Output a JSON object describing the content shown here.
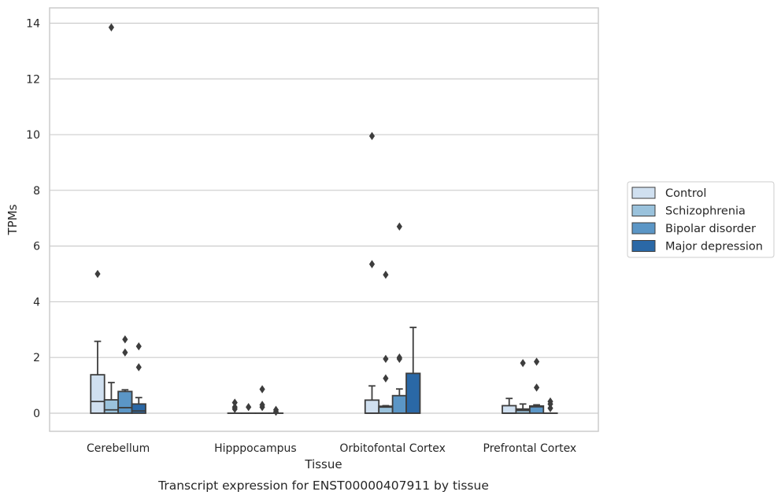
{
  "chart_data": {
    "type": "box",
    "title": "",
    "caption": "Transcript expression for ENST00000407911 by tissue",
    "xlabel": "Tissue",
    "ylabel": "TPMs",
    "ylim": [
      -0.65,
      14.55
    ],
    "yticks": [
      0,
      2,
      4,
      6,
      8,
      10,
      12,
      14
    ],
    "grid": "horizontal",
    "legend_position": "right",
    "categories": [
      "Cerebellum",
      "Hipppocampus",
      "Orbitofontal Cortex",
      "Prefrontal Cortex"
    ],
    "series": [
      {
        "name": "Control",
        "color": "#d0e0f0",
        "boxes": [
          {
            "whislo": 0,
            "q1": 0,
            "med": 0.42,
            "q3": 1.38,
            "whishi": 2.58,
            "fliers": [
              5.0
            ]
          },
          {
            "whislo": 0,
            "q1": 0,
            "med": 0,
            "q3": 0,
            "whishi": 0,
            "fliers": [
              0.15,
              0.22,
              0.38
            ]
          },
          {
            "whislo": 0,
            "q1": 0,
            "med": 0,
            "q3": 0.47,
            "whishi": 0.98,
            "fliers": [
              5.35,
              9.95
            ]
          },
          {
            "whislo": 0,
            "q1": 0,
            "med": 0,
            "q3": 0.27,
            "whishi": 0.53,
            "fliers": []
          }
        ]
      },
      {
        "name": "Schizophrenia",
        "color": "#9ac2dc",
        "boxes": [
          {
            "whislo": 0,
            "q1": 0,
            "med": 0.12,
            "q3": 0.48,
            "whishi": 1.1,
            "fliers": [
              13.85
            ]
          },
          {
            "whislo": 0,
            "q1": 0,
            "med": 0,
            "q3": 0,
            "whishi": 0,
            "fliers": [
              0.22
            ]
          },
          {
            "whislo": 0,
            "q1": 0,
            "med": 0.22,
            "q3": 0.25,
            "whishi": 0.27,
            "fliers": [
              1.25,
              1.95,
              4.97
            ]
          },
          {
            "whislo": 0,
            "q1": 0,
            "med": 0.1,
            "q3": 0.15,
            "whishi": 0.33,
            "fliers": [
              1.8
            ]
          }
        ]
      },
      {
        "name": "Bipolar disorder",
        "color": "#5b96c6",
        "boxes": [
          {
            "whislo": 0,
            "q1": 0,
            "med": 0.2,
            "q3": 0.78,
            "whishi": 0.84,
            "fliers": [
              2.18,
              2.65
            ]
          },
          {
            "whislo": 0,
            "q1": 0,
            "med": 0,
            "q3": 0,
            "whishi": 0,
            "fliers": [
              0.22,
              0.3,
              0.86
            ]
          },
          {
            "whislo": 0,
            "q1": 0,
            "med": 0,
            "q3": 0.63,
            "whishi": 0.87,
            "fliers": [
              1.95,
              2.0,
              6.7
            ]
          },
          {
            "whislo": 0,
            "q1": 0,
            "med": 0.23,
            "q3": 0.26,
            "whishi": 0.3,
            "fliers": [
              0.92,
              1.85
            ]
          }
        ]
      },
      {
        "name": "Major depression",
        "color": "#2a68a6",
        "boxes": [
          {
            "whislo": 0,
            "q1": 0,
            "med": 0.08,
            "q3": 0.33,
            "whishi": 0.56,
            "fliers": [
              1.65,
              2.4
            ]
          },
          {
            "whislo": 0,
            "q1": 0,
            "med": 0,
            "q3": 0,
            "whishi": 0,
            "fliers": [
              0.05,
              0.12
            ]
          },
          {
            "whislo": 0,
            "q1": 0,
            "med": 0,
            "q3": 1.43,
            "whishi": 3.08,
            "fliers": []
          },
          {
            "whislo": 0,
            "q1": 0,
            "med": 0,
            "q3": 0,
            "whishi": 0,
            "fliers": [
              0.18,
              0.33,
              0.42
            ]
          }
        ]
      }
    ]
  },
  "colors": {
    "grid": "#cccccc",
    "frame": "#cccccc",
    "line": "#3d3d3d",
    "flier": "#3d3d3d"
  }
}
